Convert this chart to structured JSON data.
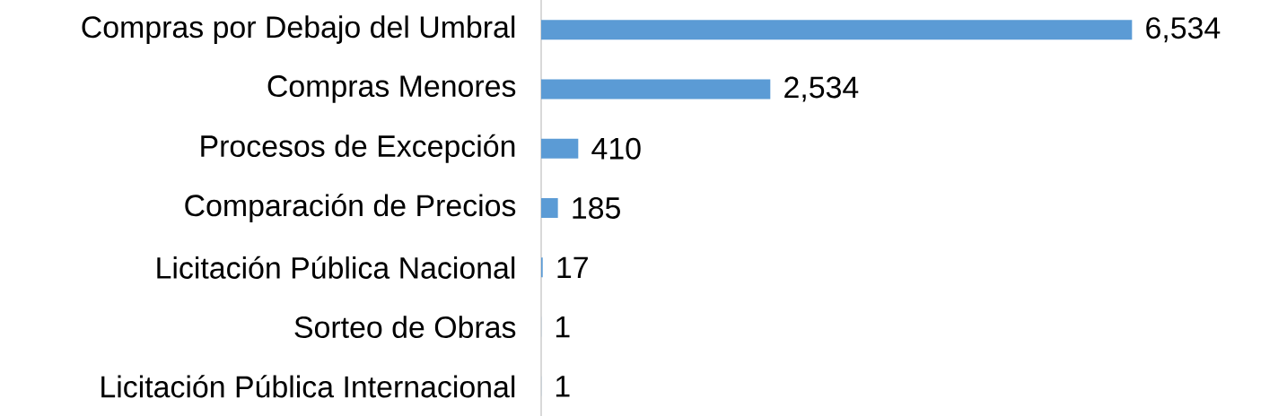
{
  "chart_data": {
    "type": "bar",
    "orientation": "horizontal",
    "categories": [
      "Compras por Debajo del Umbral",
      "Compras Menores",
      "Procesos de Excepción",
      "Comparación de Precios",
      "Licitación Pública Nacional",
      "Sorteo de Obras",
      "Licitación Pública Internacional"
    ],
    "values": [
      6534,
      2534,
      410,
      185,
      17,
      1,
      1
    ],
    "value_labels": [
      "6,534",
      "2,534",
      "410",
      "185",
      "17",
      "1",
      "1"
    ],
    "color": "#5b9bd5"
  }
}
